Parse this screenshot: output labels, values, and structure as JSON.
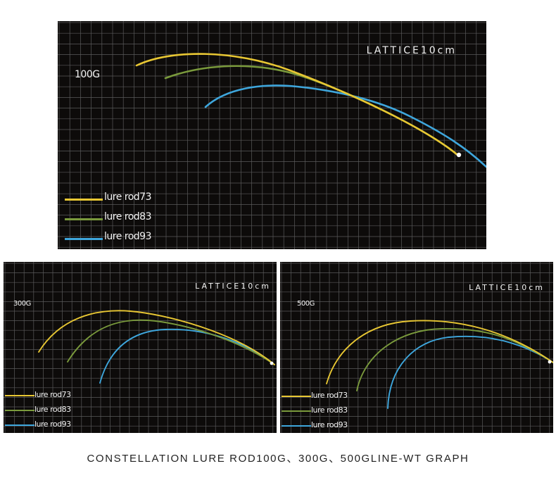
{
  "caption": "CONSTELLATION LURE ROD100G、300G、500GLINE-WT GRAPH",
  "colors": {
    "background": "#0d0b0a",
    "grid": "#5a5a5a",
    "rod73": "#e8c733",
    "rod83": "#7a9a3c",
    "rod93": "#3ea6dc",
    "text": "#f2f2f2"
  },
  "chart_data": [
    {
      "type": "line",
      "lattice_label": "LATTICE10cm",
      "load_label": "100G",
      "legend": [
        "lure rod73",
        "lure rod83",
        "lure rod93"
      ],
      "series": [
        {
          "name": "lure rod73",
          "color": "#e8c733"
        },
        {
          "name": "lure rod83",
          "color": "#7a9a3c"
        },
        {
          "name": "lure rod93",
          "color": "#3ea6dc"
        }
      ]
    },
    {
      "type": "line",
      "lattice_label": "LATTICE10cm",
      "load_label": "300G",
      "legend": [
        "lure rod73",
        "lure rod83",
        "lure rod93"
      ],
      "series": [
        {
          "name": "lure rod73",
          "color": "#e8c733"
        },
        {
          "name": "lure rod83",
          "color": "#7a9a3c"
        },
        {
          "name": "lure rod93",
          "color": "#3ea6dc"
        }
      ]
    },
    {
      "type": "line",
      "lattice_label": "LATTICE10cm",
      "load_label": "500G",
      "legend": [
        "lure rod73",
        "lure rod83",
        "lure rod93"
      ],
      "series": [
        {
          "name": "lure rod73",
          "color": "#e8c733"
        },
        {
          "name": "lure rod83",
          "color": "#7a9a3c"
        },
        {
          "name": "lure rod93",
          "color": "#3ea6dc"
        }
      ]
    }
  ]
}
